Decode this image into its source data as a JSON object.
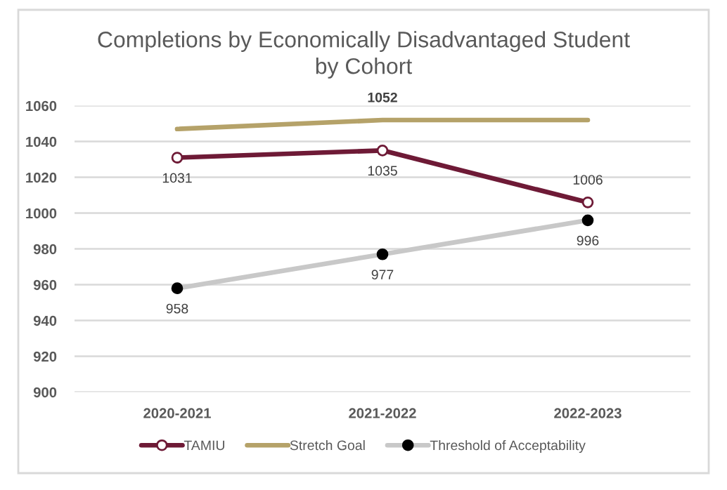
{
  "chart_data": {
    "type": "line",
    "title": "Completions by Economically Disadvantaged Student\nby Cohort",
    "categories": [
      "2020-2021",
      "2021-2022",
      "2022-2023"
    ],
    "series": [
      {
        "name": "TAMIU",
        "color": "#6e1a36",
        "values": [
          1031,
          1035,
          1006
        ],
        "marker": "circle",
        "value_labels": [
          "1031",
          "1035",
          "1006"
        ]
      },
      {
        "name": "Stretch Goal",
        "color": "#b5a269",
        "values": [
          1047,
          1052,
          1052
        ],
        "marker": "none",
        "value_labels": [
          null,
          "1052",
          null
        ]
      },
      {
        "name": "Threshold of Acceptability",
        "color": "#c8c8c8",
        "values": [
          958,
          977,
          996
        ],
        "marker": "circle",
        "value_labels": [
          "958",
          "977",
          "996"
        ]
      }
    ],
    "ylim": [
      900,
      1060
    ],
    "yticks": [
      900,
      920,
      940,
      960,
      980,
      1000,
      1020,
      1040,
      1060
    ],
    "grid": "y",
    "legend": "bottom"
  }
}
